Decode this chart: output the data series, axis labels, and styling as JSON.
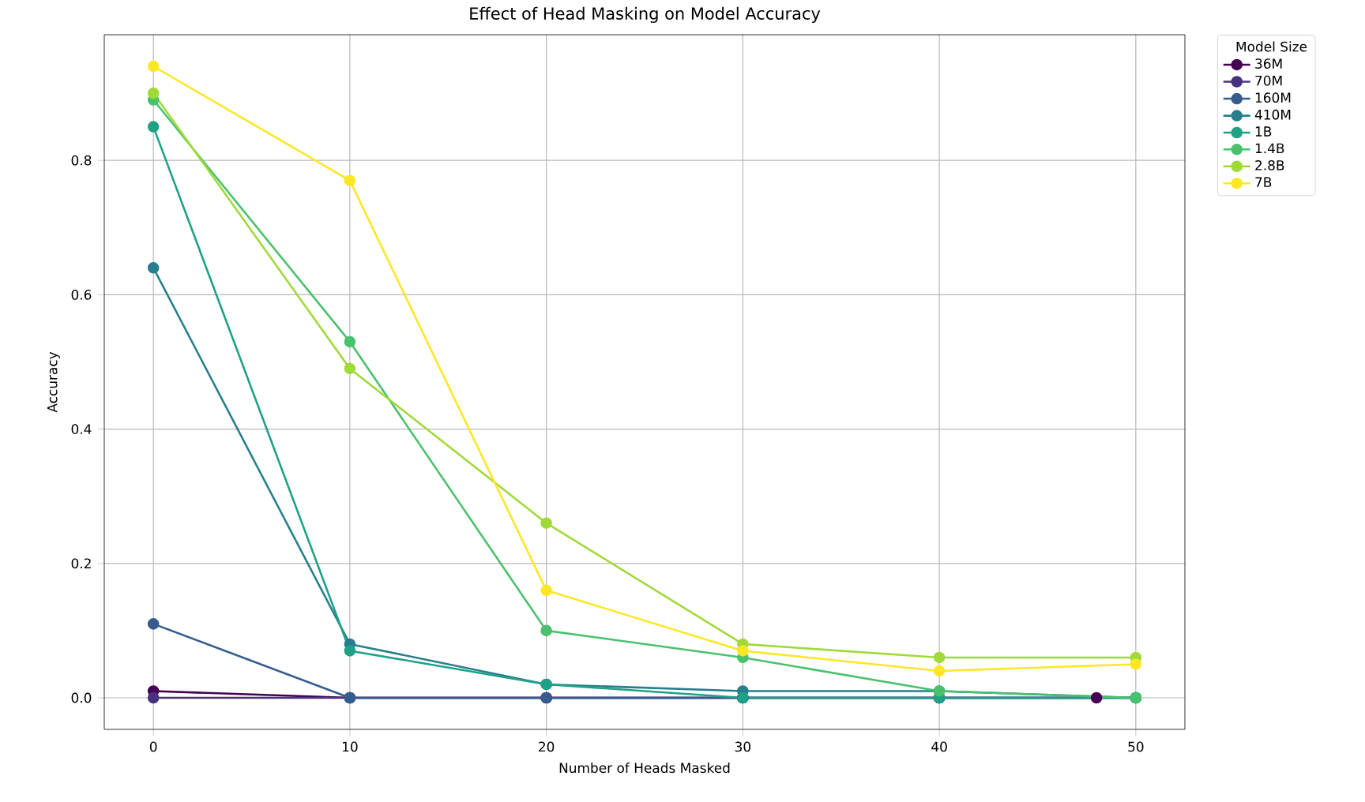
{
  "chart_data": {
    "type": "line",
    "title": "Effect of Head Masking on Model Accuracy",
    "xlabel": "Number of Heads Masked",
    "ylabel": "Accuracy",
    "legend_title": "Model Size",
    "x": [
      0,
      10,
      20,
      30,
      40,
      50
    ],
    "series": [
      {
        "name": "36M",
        "color": "#440154",
        "x": [
          0,
          10,
          20,
          30,
          40,
          48
        ],
        "values": [
          0.01,
          0,
          0,
          0,
          0,
          0
        ]
      },
      {
        "name": "70M",
        "color": "#46327e",
        "values": [
          0,
          0,
          0,
          0,
          0,
          0
        ]
      },
      {
        "name": "160M",
        "color": "#365c8d",
        "values": [
          0.11,
          0,
          0,
          0,
          0,
          0
        ]
      },
      {
        "name": "410M",
        "color": "#277f8e",
        "values": [
          0.64,
          0.08,
          0.02,
          0.01,
          0.01,
          0
        ]
      },
      {
        "name": "1B",
        "color": "#1fa187",
        "values": [
          0.85,
          0.07,
          0.02,
          0,
          0,
          0
        ]
      },
      {
        "name": "1.4B",
        "color": "#4ac16d",
        "values": [
          0.89,
          0.53,
          0.1,
          0.06,
          0.01,
          0
        ]
      },
      {
        "name": "2.8B",
        "color": "#a0da39",
        "values": [
          0.9,
          0.49,
          0.26,
          0.08,
          0.06,
          0.06
        ]
      },
      {
        "name": "7B",
        "color": "#fde725",
        "values": [
          0.94,
          0.77,
          0.16,
          0.07,
          0.04,
          0.05
        ]
      }
    ],
    "xlim": [
      -2.5,
      52.5
    ],
    "ylim": [
      -0.047,
      0.987
    ],
    "xticks": [
      0,
      10,
      20,
      30,
      40,
      50
    ],
    "yticks": [
      {
        "value": 0,
        "label": "0.0"
      },
      {
        "value": 0.2,
        "label": "0.2"
      },
      {
        "value": 0.4,
        "label": "0.4"
      },
      {
        "value": 0.6,
        "label": "0.6"
      },
      {
        "value": 0.8,
        "label": "0.8"
      }
    ],
    "grid": true,
    "legend": "top right",
    "marker": "circle",
    "line_style": "solid"
  }
}
